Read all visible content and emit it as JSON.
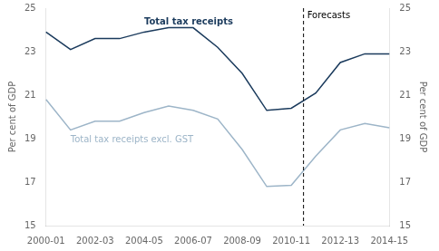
{
  "chart_data": {
    "type": "line",
    "categories": [
      "2000-01",
      null,
      "2002-03",
      null,
      "2004-05",
      null,
      "2006-07",
      null,
      "2008-09",
      null,
      "2010-11",
      null,
      "2012-13",
      null,
      "2014-15"
    ],
    "series": [
      {
        "name": "Total tax receipts",
        "color": "#1a3a5c",
        "values": [
          23.9,
          23.1,
          23.6,
          23.6,
          23.9,
          24.1,
          24.1,
          23.2,
          22.0,
          20.3,
          20.4,
          21.1,
          22.5,
          22.9,
          22.9
        ]
      },
      {
        "name": "Total tax receipts excl. GST",
        "color": "#9db5c8",
        "values": [
          20.8,
          19.4,
          19.8,
          19.8,
          20.2,
          20.5,
          20.3,
          19.9,
          18.5,
          16.8,
          16.85,
          18.2,
          19.4,
          19.7,
          19.5
        ]
      }
    ],
    "ylabel": "Per cent of GDP",
    "y2label": "Per cent of GDP",
    "ylim": [
      15,
      25
    ],
    "yticks": [
      15,
      17,
      19,
      21,
      23,
      25
    ],
    "y2lim": [
      15,
      25
    ],
    "y2ticks": [
      15,
      17,
      19,
      21,
      23,
      25
    ],
    "vlines": [
      {
        "x": 10.5,
        "line_style": "dashed",
        "color": "#000000",
        "label": "Forecasts"
      }
    ],
    "grid": false
  }
}
